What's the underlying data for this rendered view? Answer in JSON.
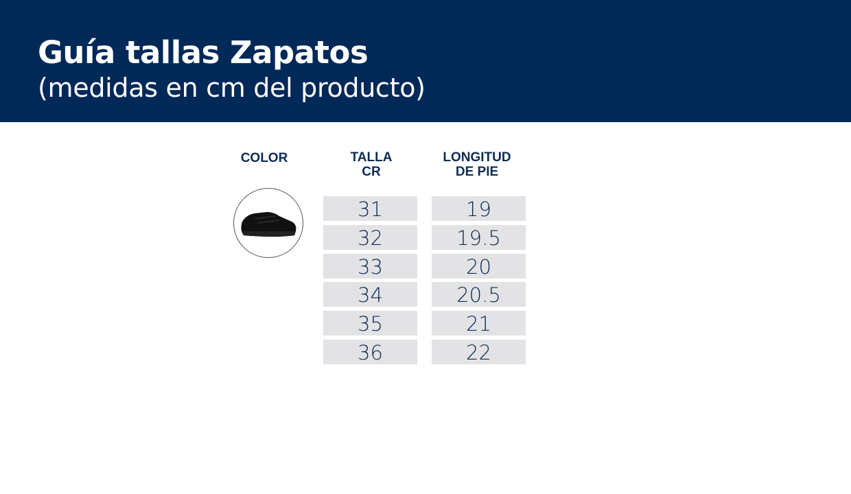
{
  "header": {
    "title": "Guía tallas Zapatos",
    "subtitle": "(medidas en cm del producto)",
    "background": "#012958"
  },
  "table": {
    "columns": [
      {
        "line1": "COLOR",
        "line2": ""
      },
      {
        "line1": "TALLA",
        "line2": "CR"
      },
      {
        "line1": "LONGITUD",
        "line2": "DE PIE"
      }
    ],
    "product_image": "black-sneaker",
    "rows": [
      {
        "talla": "31",
        "longitud": "19"
      },
      {
        "talla": "32",
        "longitud": "19.5"
      },
      {
        "talla": "33",
        "longitud": "20"
      },
      {
        "talla": "34",
        "longitud": "20.5"
      },
      {
        "talla": "35",
        "longitud": "21"
      },
      {
        "talla": "36",
        "longitud": "22"
      }
    ]
  }
}
